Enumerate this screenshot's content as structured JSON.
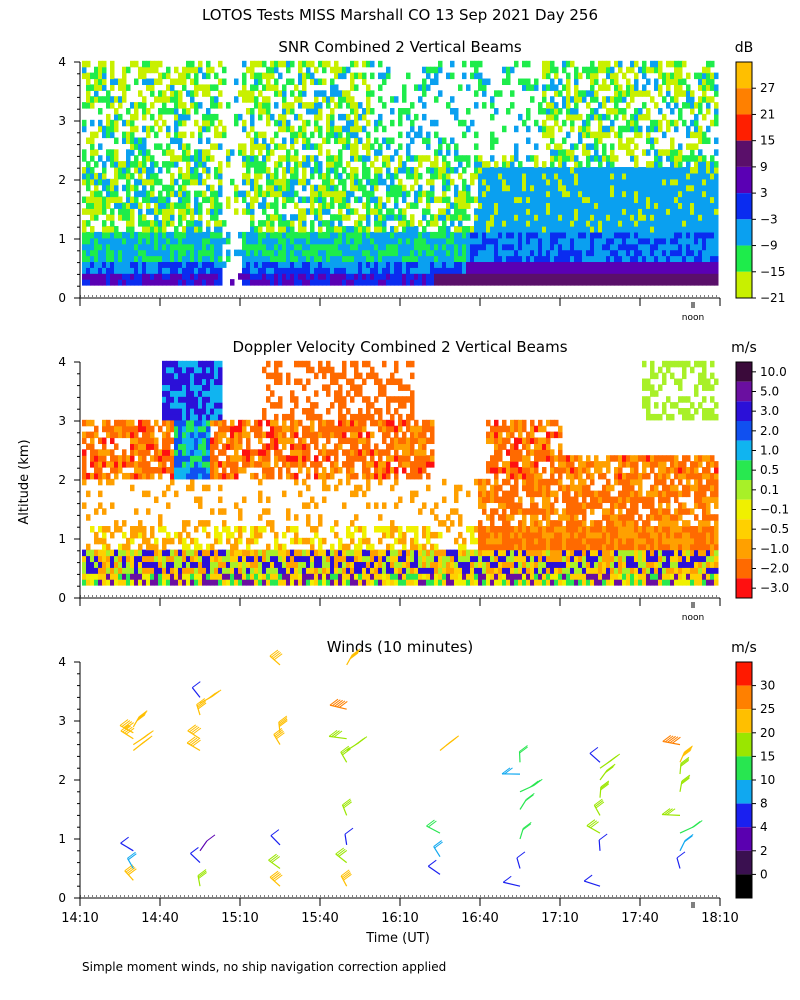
{
  "title": "LOTOS Tests MISS Marshall CO  13 Sep 2021 Day 256",
  "footnote": "Simple moment winds, no ship navigation correction applied",
  "y_axis_label": "Altitude (km)",
  "x_axis_label": "Time (UT)",
  "noon_label": "noon",
  "chart_data": [
    {
      "type": "heatmap",
      "title": "SNR Combined 2 Vertical Beams",
      "ylim": [
        0,
        4
      ],
      "yticks": [
        "0",
        "1",
        "2",
        "3",
        "4"
      ],
      "colorbar_unit": "dB",
      "colorbar_labels": [
        "27",
        "21",
        "15",
        "9",
        "3",
        "−3",
        "−9",
        "−15",
        "−21"
      ],
      "colorbar_colors": [
        "#ffbf00",
        "#ff8000",
        "#ff1f00",
        "#5a0f6a",
        "#5a00b4",
        "#0a2cf0",
        "#0aa0f0",
        "#1eec4b",
        "#c8f000"
      ]
    },
    {
      "type": "heatmap",
      "title": "Doppler Velocity Combined 2 Vertical Beams",
      "ylim": [
        0,
        4
      ],
      "yticks": [
        "0",
        "1",
        "2",
        "3",
        "4"
      ],
      "colorbar_unit": "m/s",
      "colorbar_labels": [
        "10.0",
        "5.0",
        "3.0",
        "2.0",
        "1.0",
        "0.5",
        "0.1",
        "−0.1",
        "−0.5",
        "−1.0",
        "−2.0",
        "−3.0"
      ],
      "colorbar_colors": [
        "#3a0a3a",
        "#6a0fa0",
        "#2b10d8",
        "#1050f0",
        "#10b4f0",
        "#28e850",
        "#a8f028",
        "#f0f000",
        "#ffd000",
        "#ffa000",
        "#ff6a00",
        "#ff1010"
      ]
    },
    {
      "type": "scatter",
      "title": "Winds (10 minutes)",
      "ylim": [
        0,
        4
      ],
      "yticks": [
        "0",
        "1",
        "2",
        "3",
        "4"
      ],
      "xticks": [
        "14:10",
        "14:40",
        "15:10",
        "15:40",
        "16:10",
        "16:40",
        "17:10",
        "17:40",
        "18:10"
      ],
      "colorbar_unit": "m/s",
      "colorbar_labels": [
        "30",
        "25",
        "20",
        "15",
        "10",
        "8",
        "4",
        "2",
        "0"
      ],
      "colorbar_colors": [
        "#ff1a00",
        "#ff8000",
        "#ffbf00",
        "#9ae600",
        "#28e650",
        "#10a8f0",
        "#1a20f0",
        "#5a00b0",
        "#3a1050",
        "#000000"
      ],
      "wind_profiles": [
        {
          "time": "14:30",
          "levels": [
            {
              "alt": 0.3,
              "speed": 20
            },
            {
              "alt": 0.5,
              "speed": 8
            },
            {
              "alt": 0.8,
              "speed": 4
            },
            {
              "alt": 2.5,
              "speed": 22
            },
            {
              "alt": 2.6,
              "speed": 22
            },
            {
              "alt": 2.7,
              "speed": 22
            },
            {
              "alt": 2.8,
              "speed": 22
            },
            {
              "alt": 2.9,
              "speed": 22
            }
          ]
        },
        {
          "time": "14:55",
          "levels": [
            {
              "alt": 0.2,
              "speed": 15
            },
            {
              "alt": 0.6,
              "speed": 4
            },
            {
              "alt": 0.8,
              "speed": 3
            },
            {
              "alt": 2.5,
              "speed": 20
            },
            {
              "alt": 2.7,
              "speed": 20
            },
            {
              "alt": 3.1,
              "speed": 22
            },
            {
              "alt": 3.3,
              "speed": 22
            },
            {
              "alt": 3.4,
              "speed": 4
            }
          ]
        },
        {
          "time": "15:25",
          "levels": [
            {
              "alt": 0.2,
              "speed": 20
            },
            {
              "alt": 0.5,
              "speed": 15
            },
            {
              "alt": 0.9,
              "speed": 5
            },
            {
              "alt": 2.6,
              "speed": 22
            },
            {
              "alt": 2.8,
              "speed": 22
            },
            {
              "alt": 3.95,
              "speed": 22
            }
          ]
        },
        {
          "time": "15:50",
          "levels": [
            {
              "alt": 0.2,
              "speed": 20
            },
            {
              "alt": 0.6,
              "speed": 15
            },
            {
              "alt": 0.9,
              "speed": 5
            },
            {
              "alt": 1.4,
              "speed": 15
            },
            {
              "alt": 2.3,
              "speed": 15
            },
            {
              "alt": 2.5,
              "speed": 15
            },
            {
              "alt": 2.7,
              "speed": 15
            },
            {
              "alt": 3.2,
              "speed": 25
            },
            {
              "alt": 3.95,
              "speed": 22
            }
          ]
        },
        {
          "time": "16:25",
          "levels": [
            {
              "alt": 0.4,
              "speed": 4
            },
            {
              "alt": 0.7,
              "speed": 8
            },
            {
              "alt": 1.1,
              "speed": 10
            },
            {
              "alt": 2.5,
              "speed": 22
            }
          ]
        },
        {
          "time": "16:55",
          "levels": [
            {
              "alt": 0.2,
              "speed": 4
            },
            {
              "alt": 0.5,
              "speed": 6
            },
            {
              "alt": 1.0,
              "speed": 10
            },
            {
              "alt": 1.5,
              "speed": 12
            },
            {
              "alt": 1.8,
              "speed": 14
            },
            {
              "alt": 2.1,
              "speed": 8
            },
            {
              "alt": 2.3,
              "speed": 12
            }
          ]
        },
        {
          "time": "17:25",
          "levels": [
            {
              "alt": 0.2,
              "speed": 4
            },
            {
              "alt": 0.8,
              "speed": 4
            },
            {
              "alt": 1.1,
              "speed": 15
            },
            {
              "alt": 1.4,
              "speed": 15
            },
            {
              "alt": 1.7,
              "speed": 15
            },
            {
              "alt": 2.0,
              "speed": 16
            },
            {
              "alt": 2.2,
              "speed": 18
            },
            {
              "alt": 2.3,
              "speed": 6
            }
          ]
        },
        {
          "time": "17:55",
          "levels": [
            {
              "alt": 0.5,
              "speed": 6
            },
            {
              "alt": 0.8,
              "speed": 8
            },
            {
              "alt": 1.1,
              "speed": 12
            },
            {
              "alt": 1.4,
              "speed": 15
            },
            {
              "alt": 1.8,
              "speed": 15
            },
            {
              "alt": 2.1,
              "speed": 16
            },
            {
              "alt": 2.3,
              "speed": 22
            },
            {
              "alt": 2.6,
              "speed": 25
            }
          ]
        }
      ]
    }
  ]
}
